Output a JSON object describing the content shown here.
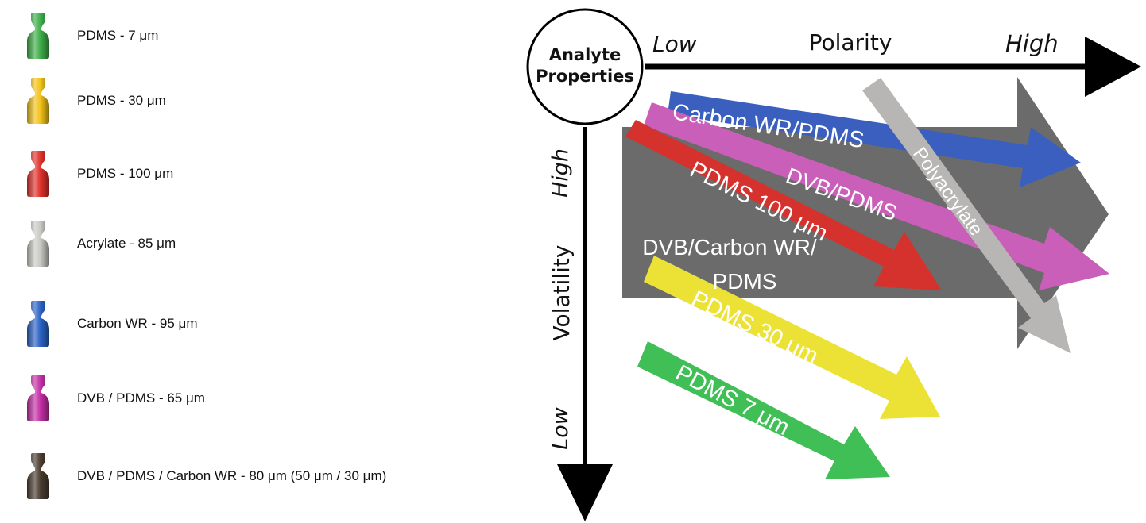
{
  "legend": {
    "items": [
      {
        "label": "PDMS - 7 μm",
        "color": "#3fae49"
      },
      {
        "label": "PDMS - 30 μm",
        "color": "#f2c21a"
      },
      {
        "label": "PDMS - 100 μm",
        "color": "#e0312b"
      },
      {
        "label": "Acrylate - 85 μm",
        "color": "#c9c9c4"
      },
      {
        "label": "Carbon WR - 95 μm",
        "color": "#2a62c4"
      },
      {
        "label": "DVB / PDMS - 65 μm",
        "color": "#c42fa6"
      },
      {
        "label": "DVB / PDMS / Carbon WR - 80 μm (50 μm / 30 μm)",
        "color": "#4a3c30"
      }
    ]
  },
  "diagram": {
    "center_label_line1": "Analyte",
    "center_label_line2": "Properties",
    "x_axis": {
      "title": "Polarity",
      "low": "Low",
      "high": "High"
    },
    "y_axis": {
      "title": "Volatility",
      "high": "High",
      "low": "Low"
    },
    "arrows": {
      "carbon_wr_pdms": {
        "label": "Carbon WR/PDMS",
        "color": "#3a5fbf"
      },
      "dvb_pdms": {
        "label": "DVB/PDMS",
        "color": "#c95fb8"
      },
      "pdms_100": {
        "label": "PDMS 100 μm",
        "color": "#d6322d"
      },
      "dvb_carbon_wr_pdms": {
        "label_line1": "DVB/Carbon WR/",
        "label_line2": "PDMS",
        "color": "#6b6b6b"
      },
      "polyacrylate": {
        "label": "Polyacrylate",
        "color": "#b8b6b4"
      },
      "pdms_30": {
        "label": "PDMS 30 μm",
        "color": "#ece235"
      },
      "pdms_7": {
        "label": "PDMS 7 μm",
        "color": "#3fbf55"
      }
    }
  }
}
